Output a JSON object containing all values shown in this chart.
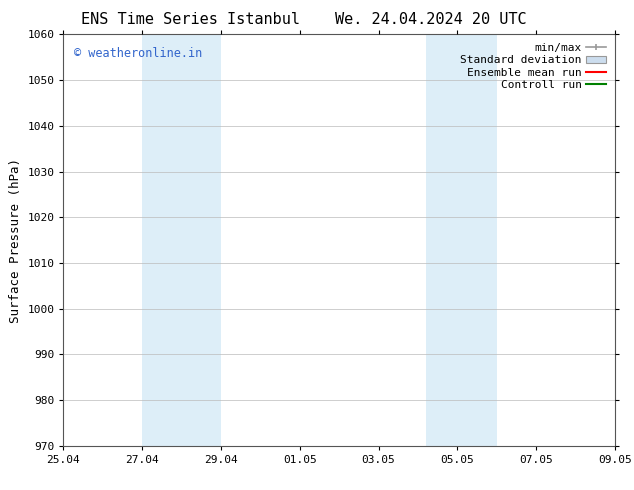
{
  "title_left": "ENS Time Series Istanbul",
  "title_right": "We. 24.04.2024 20 UTC",
  "ylabel": "Surface Pressure (hPa)",
  "ylim": [
    970,
    1060
  ],
  "yticks": [
    970,
    980,
    990,
    1000,
    1010,
    1020,
    1030,
    1040,
    1050,
    1060
  ],
  "xtick_labels": [
    "25.04",
    "27.04",
    "29.04",
    "01.05",
    "03.05",
    "05.05",
    "07.05",
    "09.05"
  ],
  "xtick_positions": [
    0,
    2,
    4,
    6,
    8,
    10,
    12,
    14
  ],
  "shaded_regions": [
    {
      "start": 2,
      "end": 4,
      "color": "#ddeef8"
    },
    {
      "start": 9.2,
      "end": 11.0,
      "color": "#ddeef8"
    }
  ],
  "watermark_text": "© weatheronline.in",
  "watermark_color": "#3366cc",
  "legend_items": [
    {
      "label": "min/max",
      "color": "#999999",
      "style": "minmax"
    },
    {
      "label": "Standard deviation",
      "color": "#ccddee",
      "style": "rect"
    },
    {
      "label": "Ensemble mean run",
      "color": "#ff0000",
      "style": "line"
    },
    {
      "label": "Controll run",
      "color": "#008000",
      "style": "line"
    }
  ],
  "bg_color": "#ffffff",
  "grid_color": "#bbbbbb",
  "title_fontsize": 11,
  "tick_fontsize": 8,
  "ylabel_fontsize": 9,
  "legend_fontsize": 8
}
